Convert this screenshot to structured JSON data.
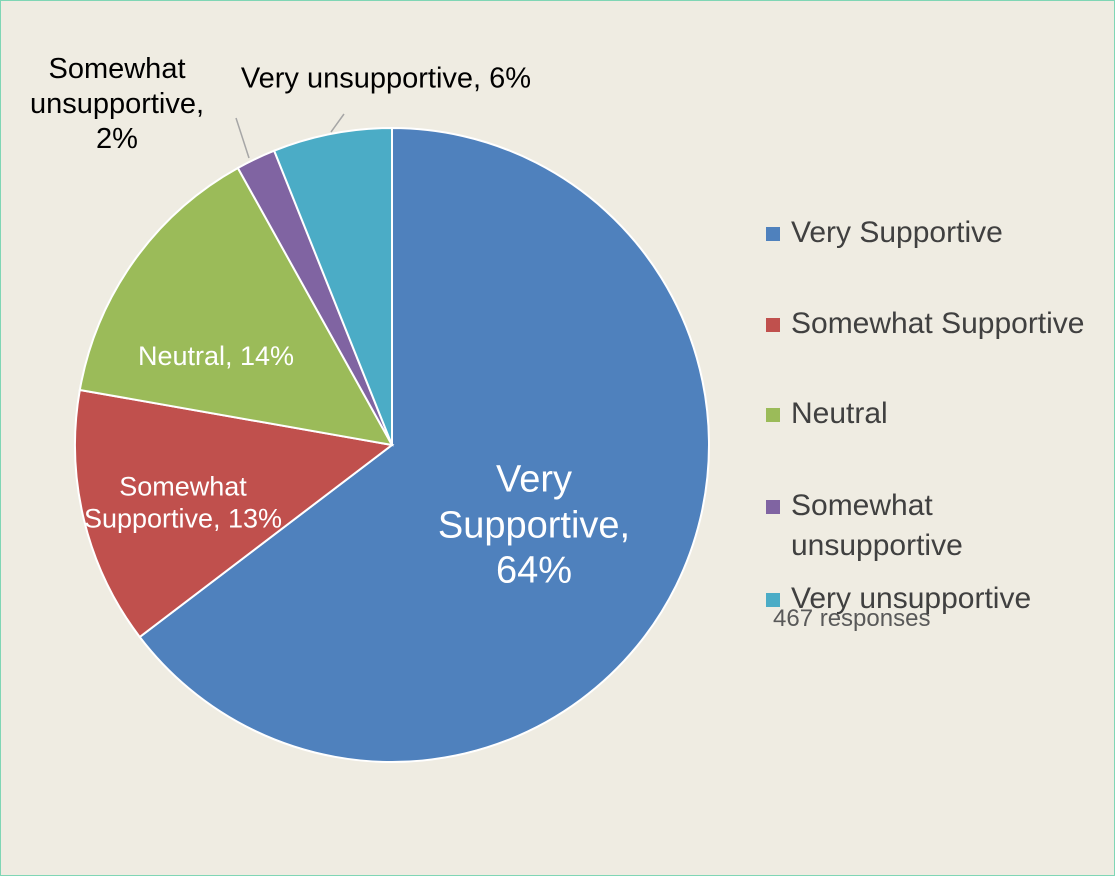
{
  "chart_data": {
    "type": "pie",
    "categories": [
      "Very Supportive",
      "Somewhat Supportive",
      "Neutral",
      "Somewhat unsupportive",
      "Very unsupportive"
    ],
    "values": [
      64,
      13,
      14,
      2,
      6
    ],
    "value_labels": [
      "Very Supportive, 64%",
      "Somewhat Supportive, 13%",
      "Neutral, 14%",
      "Somewhat unsupportive, 2%",
      "Very unsupportive, 6%"
    ],
    "colors": [
      "#4f81bd",
      "#c0504d",
      "#9bbb59",
      "#8064a2",
      "#4bacc6"
    ],
    "legend": "right",
    "annotation": "467 responses"
  }
}
